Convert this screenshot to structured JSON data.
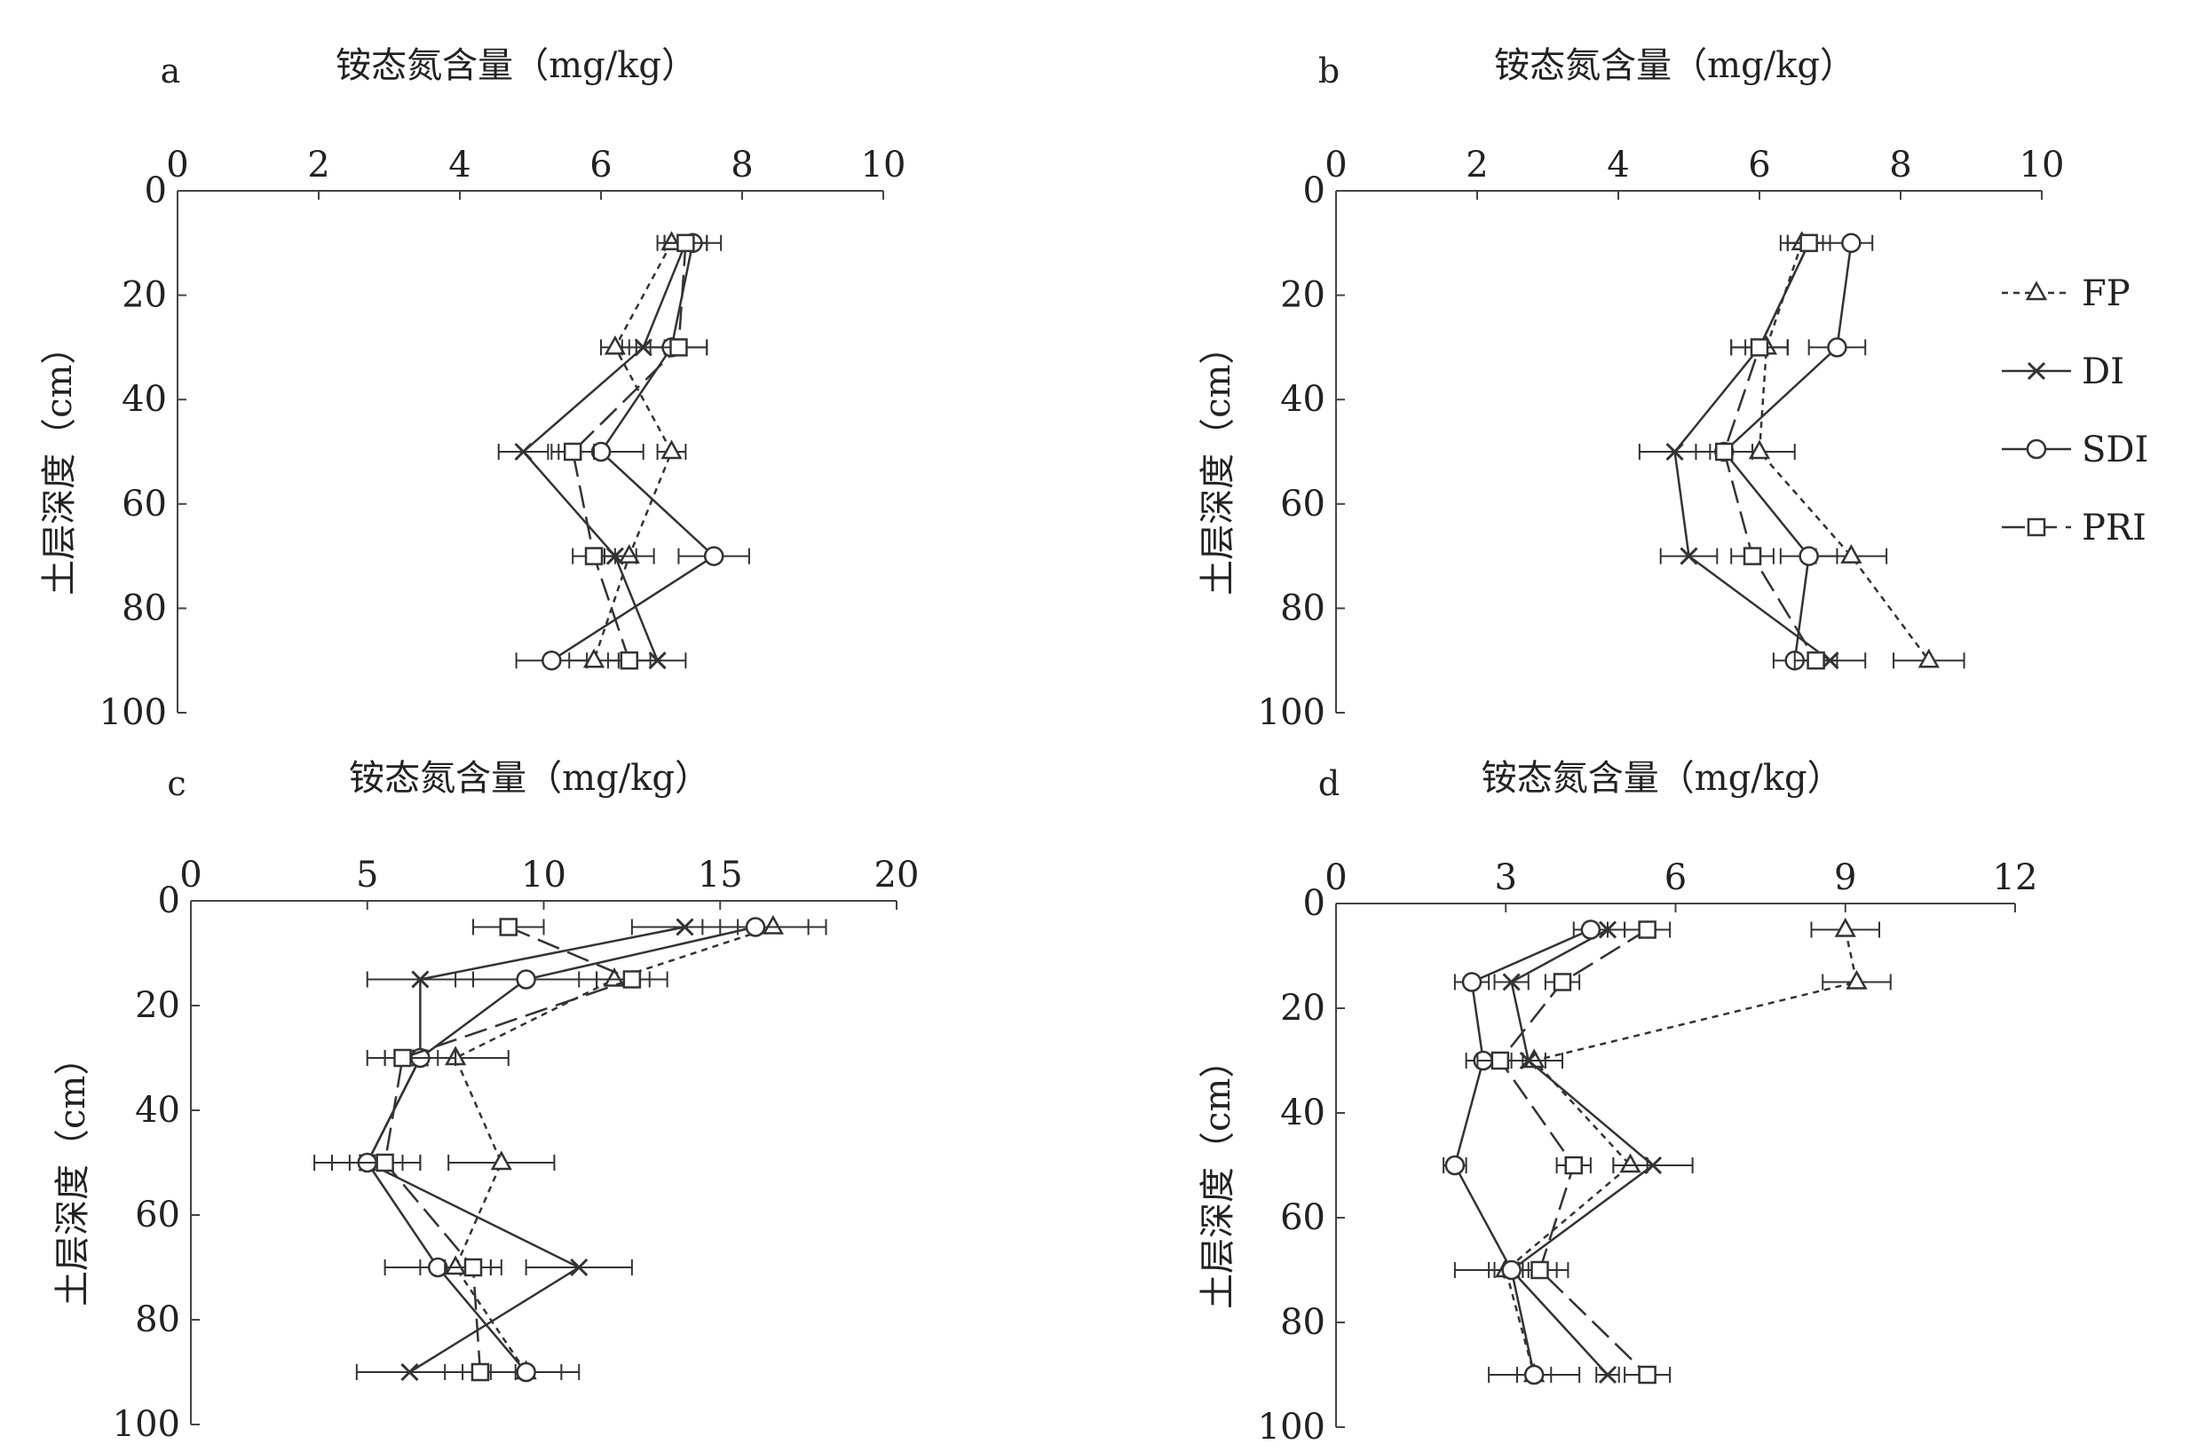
{
  "legend": [
    {
      "key": "FP",
      "label": "FP"
    },
    {
      "key": "DI",
      "label": "DI"
    },
    {
      "key": "SDI",
      "label": "SDI"
    },
    {
      "key": "PRI",
      "label": "PRI"
    }
  ],
  "chart_data": [
    {
      "type": "line",
      "panel": "a",
      "xlabel": "铵态氮含量（mg/kg）",
      "ylabel": "土层深度（cm）",
      "xlim": [
        0,
        10
      ],
      "ylim": [
        0,
        100
      ],
      "x_ticks": [
        0,
        2,
        4,
        6,
        8,
        10
      ],
      "y_ticks": [
        0,
        20,
        40,
        60,
        80,
        100
      ],
      "depth": [
        10,
        30,
        50,
        70,
        90
      ],
      "series": [
        {
          "name": "FP",
          "values": [
            7.0,
            6.2,
            7.0,
            6.4,
            5.9
          ],
          "errors": [
            0.2,
            0.2,
            0.2,
            0.35,
            0.35
          ]
        },
        {
          "name": "DI",
          "values": [
            7.2,
            6.6,
            4.9,
            6.2,
            6.8
          ],
          "errors": [
            0.3,
            0.3,
            0.35,
            0.3,
            0.4
          ]
        },
        {
          "name": "SDI",
          "values": [
            7.3,
            7.0,
            6.0,
            7.6,
            5.3
          ],
          "errors": [
            0.4,
            0.5,
            0.6,
            0.5,
            0.5
          ]
        },
        {
          "name": "PRI",
          "values": [
            7.2,
            7.1,
            5.6,
            5.9,
            6.4
          ],
          "errors": [
            0.3,
            0.4,
            0.3,
            0.3,
            0.3
          ]
        }
      ]
    },
    {
      "type": "line",
      "panel": "b",
      "xlabel": "铵态氮含量（mg/kg）",
      "ylabel": "土层深度（cm）",
      "xlim": [
        0,
        10
      ],
      "ylim": [
        0,
        100
      ],
      "x_ticks": [
        0,
        2,
        4,
        6,
        8,
        10
      ],
      "y_ticks": [
        0,
        20,
        40,
        60,
        80,
        100
      ],
      "depth": [
        10,
        30,
        50,
        70,
        90
      ],
      "series": [
        {
          "name": "FP",
          "values": [
            6.6,
            6.1,
            6.0,
            7.3,
            8.4
          ],
          "errors": [
            0.3,
            0.3,
            0.5,
            0.5,
            0.5
          ]
        },
        {
          "name": "DI",
          "values": [
            6.7,
            6.0,
            4.8,
            5.0,
            7.0
          ],
          "errors": [
            0.3,
            0.4,
            0.5,
            0.4,
            0.5
          ]
        },
        {
          "name": "SDI",
          "values": [
            7.3,
            7.1,
            5.5,
            6.7,
            6.5
          ],
          "errors": [
            0.3,
            0.4,
            0.4,
            0.4,
            0.3
          ]
        },
        {
          "name": "PRI",
          "values": [
            6.7,
            6.0,
            5.5,
            5.9,
            6.8
          ],
          "errors": [
            0.3,
            0.4,
            0.4,
            0.3,
            0.3
          ]
        }
      ]
    },
    {
      "type": "line",
      "panel": "c",
      "xlabel": "铵态氮含量（mg/kg）",
      "ylabel": "土层深度（cm）",
      "xlim": [
        0,
        20
      ],
      "ylim": [
        0,
        100
      ],
      "x_ticks": [
        0,
        5,
        10,
        15,
        20
      ],
      "y_ticks": [
        0,
        20,
        40,
        60,
        80,
        100
      ],
      "depth": [
        5,
        15,
        30,
        50,
        70,
        90
      ],
      "series": [
        {
          "name": "FP",
          "values": [
            16.5,
            12.0,
            7.5,
            8.8,
            7.5,
            9.5
          ],
          "errors": [
            1.5,
            1.0,
            1.5,
            1.5,
            1.0,
            1.5
          ]
        },
        {
          "name": "DI",
          "values": [
            14.0,
            6.5,
            6.5,
            5.0,
            11.0,
            6.2
          ],
          "errors": [
            1.5,
            1.5,
            1.0,
            1.0,
            1.5,
            1.5
          ]
        },
        {
          "name": "SDI",
          "values": [
            16.0,
            9.5,
            6.5,
            5.0,
            7.0,
            9.5
          ],
          "errors": [
            1.5,
            2.0,
            1.0,
            1.5,
            1.5,
            1.0
          ]
        },
        {
          "name": "PRI",
          "values": [
            9.0,
            12.5,
            6.0,
            5.5,
            8.0,
            8.2
          ],
          "errors": [
            1.0,
            1.0,
            1.0,
            1.0,
            0.8,
            1.0
          ]
        }
      ]
    },
    {
      "type": "line",
      "panel": "d",
      "xlabel": "铵态氮含量（mg/kg）",
      "ylabel": "土层深度（cm）",
      "xlim": [
        0,
        12
      ],
      "ylim": [
        0,
        100
      ],
      "x_ticks": [
        0,
        3,
        6,
        9,
        12
      ],
      "y_ticks": [
        0,
        20,
        40,
        60,
        80,
        100
      ],
      "depth": [
        5,
        15,
        30,
        50,
        70,
        90
      ],
      "series": [
        {
          "name": "FP",
          "values": [
            9.0,
            9.2,
            3.5,
            5.2,
            3.0,
            3.5
          ],
          "errors": [
            0.6,
            0.6,
            0.5,
            0.3,
            0.3,
            0.3
          ]
        },
        {
          "name": "DI",
          "values": [
            4.8,
            3.1,
            3.4,
            5.6,
            3.1,
            4.8
          ],
          "errors": [
            0.3,
            0.3,
            0.3,
            0.7,
            0.3,
            0.2
          ]
        },
        {
          "name": "SDI",
          "values": [
            4.5,
            2.4,
            2.6,
            2.1,
            3.1,
            3.5
          ],
          "errors": [
            0.3,
            0.3,
            0.3,
            0.2,
            1.0,
            0.8
          ]
        },
        {
          "name": "PRI",
          "values": [
            5.5,
            4.0,
            2.9,
            4.2,
            3.6,
            5.5
          ],
          "errors": [
            0.4,
            0.3,
            0.4,
            0.3,
            0.3,
            0.4
          ]
        }
      ]
    }
  ]
}
